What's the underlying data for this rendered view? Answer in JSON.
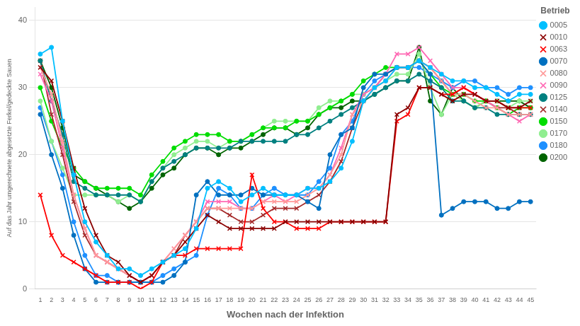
{
  "chart_data": {
    "type": "line",
    "xlabel": "Wochen nach der Infektion",
    "ylabel": "Auf das Jahr umgerechnete abgesetzte Ferkel/gedeckte Sauen",
    "legend_title": "Betrieb",
    "legend": "right",
    "grid": "y",
    "xlim": [
      0.5,
      45.5
    ],
    "xticks": [
      1,
      2,
      3,
      4,
      5,
      6,
      7,
      8,
      9,
      10,
      11,
      12,
      13,
      14,
      15,
      16,
      17,
      18,
      19,
      20,
      21,
      22,
      23,
      24,
      25,
      26,
      27,
      28,
      29,
      30,
      31,
      32,
      33,
      34,
      35,
      36,
      37,
      38,
      39,
      40,
      41,
      42,
      43,
      44,
      45
    ],
    "ylim": [
      0,
      42
    ],
    "yticks": [
      0,
      10,
      20,
      30,
      40
    ],
    "x": [
      1,
      2,
      3,
      4,
      5,
      6,
      7,
      8,
      9,
      10,
      11,
      12,
      13,
      14,
      15,
      16,
      17,
      18,
      19,
      20,
      21,
      22,
      23,
      24,
      25,
      26,
      27,
      28,
      29,
      30,
      31,
      32,
      33,
      34,
      35,
      36,
      37,
      38,
      39,
      40,
      41,
      42,
      43,
      44,
      45
    ],
    "series": [
      {
        "name": "0005",
        "color": "#00bfff",
        "marker": "o",
        "values": [
          35,
          36,
          25,
          17,
          10,
          7,
          5,
          3,
          3,
          2,
          3,
          4,
          5,
          6,
          9,
          15,
          16,
          15,
          13,
          14,
          15,
          14,
          14,
          14,
          15,
          15,
          16,
          18,
          22,
          28,
          30,
          31,
          33,
          33,
          34,
          33,
          32,
          31,
          31,
          30,
          30,
          29,
          28,
          29,
          29
        ]
      },
      {
        "name": "0010",
        "color": "#8b0000",
        "marker": "x",
        "values": [
          33,
          31,
          25,
          18,
          12,
          8,
          5,
          4,
          2,
          1,
          2,
          4,
          5,
          7,
          9,
          11,
          10,
          9,
          9,
          9,
          9,
          9,
          10,
          10,
          10,
          10,
          10,
          10,
          10,
          10,
          10,
          10,
          26,
          27,
          30,
          30,
          29,
          28,
          29,
          29,
          28,
          28,
          27,
          27,
          28
        ]
      },
      {
        "name": "0063",
        "color": "#ff0000",
        "marker": "x",
        "values": [
          14,
          8,
          5,
          4,
          3,
          2,
          1,
          1,
          1,
          0,
          1,
          4,
          5,
          5,
          6,
          6,
          6,
          6,
          6,
          17,
          12,
          10,
          10,
          9,
          9,
          9,
          10,
          10,
          10,
          10,
          10,
          10,
          25,
          26,
          30,
          30,
          29,
          29,
          30,
          29,
          28,
          28,
          27,
          27,
          27
        ]
      },
      {
        "name": "0070",
        "color": "#0070c0",
        "marker": "o",
        "values": [
          26,
          20,
          15,
          8,
          3,
          1,
          1,
          1,
          1,
          1,
          1,
          1,
          2,
          4,
          14,
          16,
          14,
          14,
          14,
          15,
          14,
          14,
          14,
          14,
          13,
          12,
          20,
          23,
          24,
          30,
          32,
          32,
          33,
          33,
          34,
          32,
          11,
          12,
          13,
          13,
          13,
          12,
          12,
          13,
          13
        ]
      },
      {
        "name": "0080",
        "color": "#ff9999",
        "marker": "x",
        "values": [
          33,
          29,
          22,
          14,
          9,
          5,
          4,
          3,
          2,
          1,
          2,
          4,
          6,
          8,
          10,
          12,
          12,
          12,
          12,
          12,
          13,
          13,
          13,
          13,
          14,
          15,
          17,
          20,
          26,
          28,
          30,
          31,
          33,
          33,
          34,
          33,
          31,
          29,
          29,
          28,
          27,
          27,
          26,
          26,
          26
        ]
      },
      {
        "name": "0090",
        "color": "#ff69b4",
        "marker": "x",
        "values": [
          32,
          28,
          21,
          14,
          9,
          5,
          4,
          3,
          2,
          1,
          2,
          4,
          6,
          8,
          10,
          13,
          13,
          13,
          12,
          12,
          13,
          14,
          13,
          14,
          15,
          15,
          17,
          21,
          26,
          29,
          30,
          32,
          35,
          35,
          36,
          34,
          32,
          30,
          30,
          29,
          28,
          27,
          26,
          25,
          26
        ]
      },
      {
        "name": "0125",
        "color": "#008080",
        "marker": "o",
        "values": [
          34,
          28,
          23,
          16,
          15,
          14,
          14,
          14,
          14,
          13,
          16,
          18,
          19,
          20,
          21,
          21,
          21,
          21,
          22,
          22,
          22,
          22,
          22,
          23,
          23,
          24,
          25,
          26,
          27,
          28,
          29,
          30,
          31,
          31,
          32,
          31,
          30,
          28,
          28,
          27,
          27,
          26,
          26,
          26,
          26
        ]
      },
      {
        "name": "0140",
        "color": "#a52a2a",
        "marker": "x",
        "values": [
          34,
          26,
          20,
          13,
          8,
          5,
          4,
          3,
          2,
          1,
          2,
          4,
          5,
          8,
          10,
          12,
          12,
          11,
          10,
          10,
          11,
          12,
          12,
          12,
          13,
          14,
          16,
          19,
          24,
          28,
          30,
          32,
          33,
          33,
          34,
          33,
          31,
          29,
          30,
          29,
          28,
          27,
          27,
          26,
          26
        ]
      },
      {
        "name": "0150",
        "color": "#00dd00",
        "marker": "o",
        "values": [
          30,
          25,
          21,
          18,
          16,
          15,
          15,
          15,
          15,
          14,
          17,
          19,
          21,
          22,
          23,
          23,
          23,
          22,
          22,
          23,
          24,
          24,
          24,
          25,
          25,
          26,
          27,
          28,
          29,
          31,
          32,
          33,
          33,
          33,
          34,
          32,
          30,
          29,
          29,
          28,
          28,
          27,
          26,
          27,
          27
        ]
      },
      {
        "name": "0170",
        "color": "#90ee90",
        "marker": "o",
        "values": [
          28,
          22,
          18,
          14,
          14,
          14,
          14,
          13,
          14,
          13,
          16,
          18,
          20,
          21,
          22,
          22,
          21,
          22,
          22,
          23,
          24,
          25,
          25,
          25,
          25,
          27,
          28,
          28,
          29,
          29,
          30,
          31,
          32,
          32,
          35,
          30,
          26,
          29,
          28,
          27,
          28,
          28,
          27,
          28,
          28
        ]
      },
      {
        "name": "0180",
        "color": "#1e90ff",
        "marker": "o",
        "values": [
          27,
          22,
          17,
          10,
          5,
          2,
          2,
          1,
          1,
          1,
          1,
          2,
          3,
          4,
          5,
          11,
          15,
          14,
          12,
          12,
          14,
          15,
          14,
          14,
          14,
          16,
          18,
          23,
          25,
          29,
          31,
          32,
          33,
          33,
          33,
          32,
          31,
          30,
          31,
          31,
          30,
          30,
          29,
          30,
          30
        ]
      },
      {
        "name": "0200",
        "color": "#006400",
        "marker": "o",
        "values": [
          34,
          30,
          24,
          17,
          16,
          15,
          14,
          13,
          12,
          13,
          15,
          17,
          18,
          20,
          21,
          21,
          20,
          21,
          21,
          22,
          23,
          24,
          24,
          23,
          24,
          26,
          27,
          27,
          28,
          28,
          29,
          30,
          31,
          31,
          36,
          28,
          26,
          30,
          28,
          27,
          28,
          28,
          28,
          28,
          27
        ]
      }
    ]
  }
}
